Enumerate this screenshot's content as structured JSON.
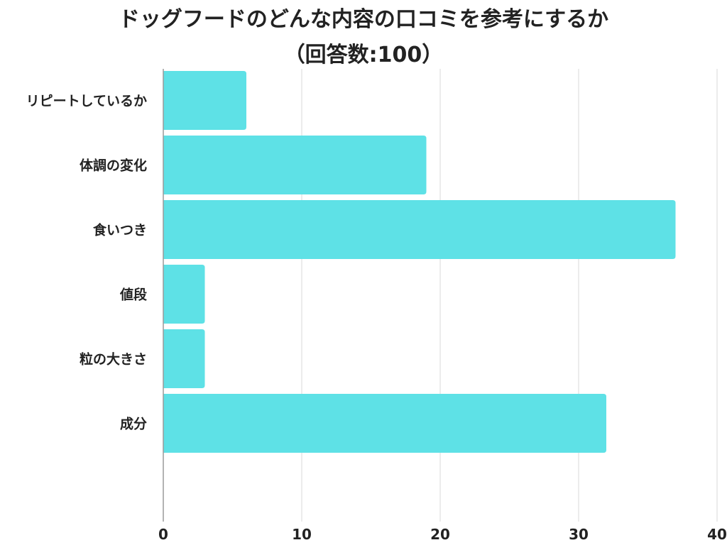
{
  "chart_data": {
    "type": "bar",
    "orientation": "horizontal",
    "title": "ドッグフードのどんな内容の口コミを参考にするか",
    "subtitle": "（回答数:100）",
    "categories": [
      "リピートしているか",
      "体調の変化",
      "食いつき",
      "値段",
      "粒の大きさ",
      "成分"
    ],
    "values": [
      6,
      19,
      37,
      3,
      3,
      32
    ],
    "xlim": [
      0,
      40
    ],
    "x_ticks": [
      0,
      10,
      20,
      30,
      40
    ],
    "xlabel": "",
    "ylabel": "",
    "grid": true,
    "legend": "none",
    "bar_color": "#5ee1e6",
    "grid_color": "#d9d9d9",
    "axis_color": "#9a9a9a",
    "text_color": "#222222"
  }
}
